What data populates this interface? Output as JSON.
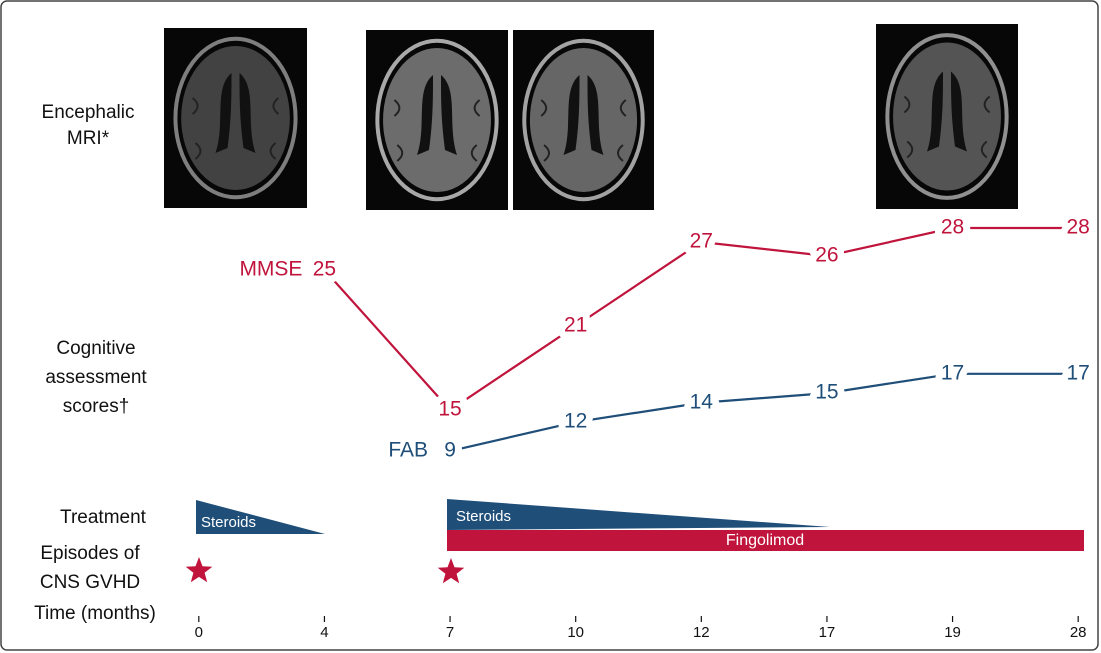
{
  "chart_data": {
    "type": "line",
    "x_label": "Time (months)",
    "categories": [
      "0",
      "4",
      "7",
      "10",
      "12",
      "17",
      "19",
      "28"
    ],
    "ylim": [
      10,
      30
    ],
    "y2lim": [
      6,
      35
    ],
    "series": [
      {
        "name": "MMSE",
        "color": "#c0143c",
        "values": [
          null,
          25,
          15,
          21,
          27,
          26,
          28,
          28
        ]
      },
      {
        "name": "FAB",
        "color": "#1f4e79",
        "axis": "y2",
        "values": [
          null,
          null,
          9,
          12,
          14,
          15,
          17,
          17
        ]
      }
    ]
  },
  "row_labels": {
    "mri": [
      "Encephalic",
      "MRI*"
    ],
    "cognitive": [
      "Cognitive",
      "assessment",
      "scores†"
    ],
    "treatment": "Treatment",
    "episodes": [
      "Episodes of",
      "CNS GVHD"
    ]
  },
  "treatments": [
    "Steroids",
    "Steroids",
    "Fingolimod"
  ]
}
